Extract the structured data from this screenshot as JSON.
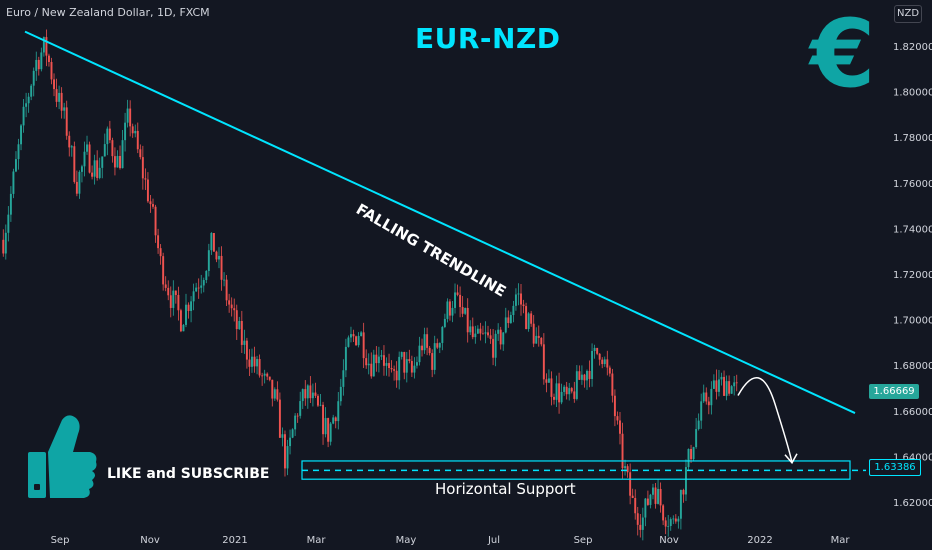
{
  "header": {
    "symbol": "Euro / New Zealand Dollar, 1D, FXCM"
  },
  "currency": "NZD",
  "annotations": {
    "title": "EUR-NZD",
    "trendline_label": "FALLING TRENDLINE",
    "support_label": "Horizontal Support",
    "cta": "LIKE and SUBSCRIBE",
    "euro_symbol": "€"
  },
  "prices": {
    "current": "1.66669",
    "support": "1.63386"
  },
  "colors": {
    "up": "#26a69a",
    "down": "#ef5350",
    "accent": "#00e5ff",
    "euro": "#0fa5a5",
    "background": "#131722"
  },
  "chart_data": {
    "type": "candlestick",
    "ylim": [
      1.605,
      1.8286
    ],
    "y_ticks": [
      "1.82000",
      "1.80000",
      "1.78000",
      "1.76000",
      "1.74000",
      "1.72000",
      "1.70000",
      "1.68000",
      "1.66000",
      "1.64000",
      "1.62000"
    ],
    "x_ticks": [
      "Sep",
      "Nov",
      "2021",
      "Mar",
      "May",
      "Jul",
      "Sep",
      "Nov",
      "2022",
      "Mar"
    ],
    "series": [
      {
        "values": [
          1.735,
          1.762,
          1.79,
          1.812,
          1.82,
          1.8,
          1.785,
          1.76,
          1.772,
          1.765,
          1.78,
          1.768,
          1.79,
          1.77,
          1.752,
          1.725,
          1.71,
          1.7,
          1.712,
          1.72,
          1.734,
          1.715,
          1.7,
          1.688,
          1.68,
          1.672,
          1.664,
          1.636,
          1.66,
          1.668,
          1.66,
          1.65,
          1.665,
          1.69,
          1.695,
          1.68,
          1.688,
          1.672,
          1.682,
          1.676,
          1.69,
          1.682,
          1.7,
          1.71,
          1.7,
          1.69,
          1.692,
          1.688,
          1.698,
          1.712,
          1.7,
          1.69,
          1.672,
          1.668,
          1.664,
          1.674,
          1.68,
          1.688,
          1.67,
          1.64,
          1.62,
          1.612,
          1.628,
          1.616,
          1.61,
          1.63,
          1.65,
          1.665,
          1.67,
          1.673,
          1.668
        ]
      }
    ],
    "trendline": {
      "start": {
        "x": "Aug 2020",
        "y": 1.8263
      },
      "end": {
        "x": "Mar 2022",
        "y": 1.659
      }
    },
    "support_zone": {
      "low": 1.63,
      "high": 1.638,
      "level": 1.63386
    },
    "projection": "bounce off trendline toward support"
  }
}
